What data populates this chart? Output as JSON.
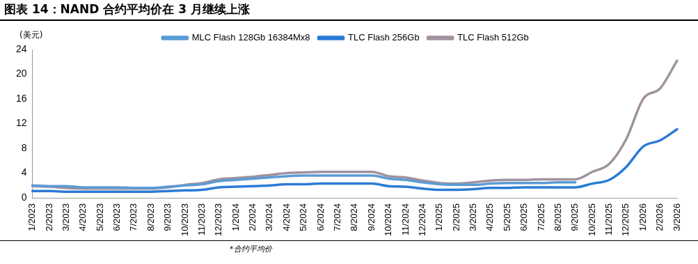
{
  "chart_data": {
    "type": "line",
    "title": "图表 14：NAND 合约平均价在 3 月继续上涨",
    "ylabel": "(美元)",
    "categories": [
      "1/2023",
      "2/2023",
      "3/2023",
      "4/2023",
      "5/2023",
      "6/2023",
      "7/2023",
      "8/2023",
      "9/2023",
      "10/2023",
      "11/2023",
      "12/2023",
      "1/2024",
      "2/2024",
      "3/2024",
      "4/2024",
      "5/2024",
      "6/2024",
      "7/2024",
      "8/2024",
      "9/2024",
      "10/2024",
      "11/2024",
      "12/2024",
      "1/2025",
      "2/2025",
      "3/2025",
      "4/2025",
      "5/2025",
      "6/2025",
      "7/2025",
      "8/2025",
      "9/2025",
      "10/2025",
      "11/2025",
      "12/2025",
      "1/2026",
      "2/2026",
      "3/2026"
    ],
    "series": [
      {
        "name": "MLC Flash 128Gb 16384Mx8",
        "color": "#5b9bd5",
        "values": [
          2.0,
          1.9,
          1.9,
          1.7,
          1.7,
          1.7,
          1.6,
          1.6,
          1.8,
          2.0,
          2.2,
          2.7,
          2.9,
          3.1,
          3.3,
          3.5,
          3.6,
          3.6,
          3.6,
          3.6,
          3.6,
          3.1,
          2.9,
          2.5,
          2.2,
          2.1,
          2.1,
          2.3,
          2.4,
          2.4,
          2.4,
          2.5,
          2.5,
          null,
          null,
          null,
          null,
          null,
          null
        ]
      },
      {
        "name": "TLC Flash 256Gb",
        "color": "#2a7bd6",
        "values": [
          1.1,
          1.1,
          1.0,
          1.0,
          1.0,
          1.0,
          1.0,
          1.0,
          1.1,
          1.2,
          1.3,
          1.7,
          1.8,
          1.9,
          2.0,
          2.2,
          2.2,
          2.3,
          2.3,
          2.3,
          2.3,
          1.9,
          1.8,
          1.5,
          1.3,
          1.3,
          1.4,
          1.6,
          1.6,
          1.7,
          1.7,
          1.7,
          1.7,
          2.3,
          2.9,
          5.0,
          8.3,
          9.3,
          11.1
        ]
      },
      {
        "name": "TLC Flash 512Gb",
        "color": "#a0929f",
        "values": [
          1.9,
          1.8,
          1.6,
          1.5,
          1.5,
          1.5,
          1.5,
          1.5,
          1.7,
          2.1,
          2.4,
          3.0,
          3.2,
          3.4,
          3.7,
          4.0,
          4.1,
          4.2,
          4.2,
          4.2,
          4.2,
          3.5,
          3.3,
          2.8,
          2.4,
          2.3,
          2.5,
          2.8,
          2.9,
          2.9,
          3.0,
          3.0,
          3.0,
          4.2,
          5.5,
          9.5,
          16.0,
          17.7,
          22.2
        ]
      }
    ],
    "ylim": [
      0,
      24
    ],
    "yticks": [
      0,
      4,
      8,
      12,
      16,
      20,
      24
    ],
    "grid": false,
    "legend": "top",
    "marker": "none",
    "line_style": "solid",
    "annotations": [
      "*合约平均价"
    ]
  }
}
